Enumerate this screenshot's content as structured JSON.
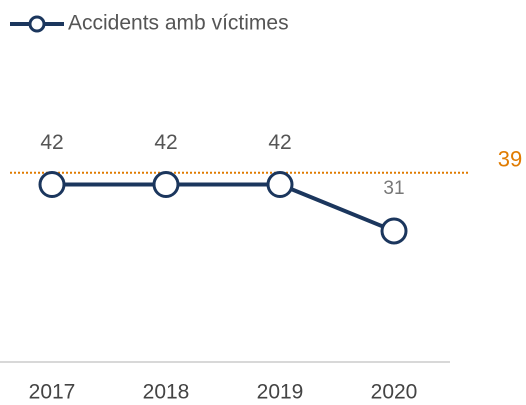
{
  "chart_data": {
    "type": "line",
    "categories": [
      "2017",
      "2018",
      "2019",
      "2020"
    ],
    "series": [
      {
        "name": "Accidents amb víctimes",
        "color": "#1b365d",
        "values": [
          42,
          42,
          42,
          31
        ]
      }
    ],
    "ylim": [
      0,
      62
    ],
    "y2lim": [
      0,
      54
    ],
    "reference_line": {
      "value": 39,
      "color": "#e07b00",
      "axis": "y2"
    }
  }
}
